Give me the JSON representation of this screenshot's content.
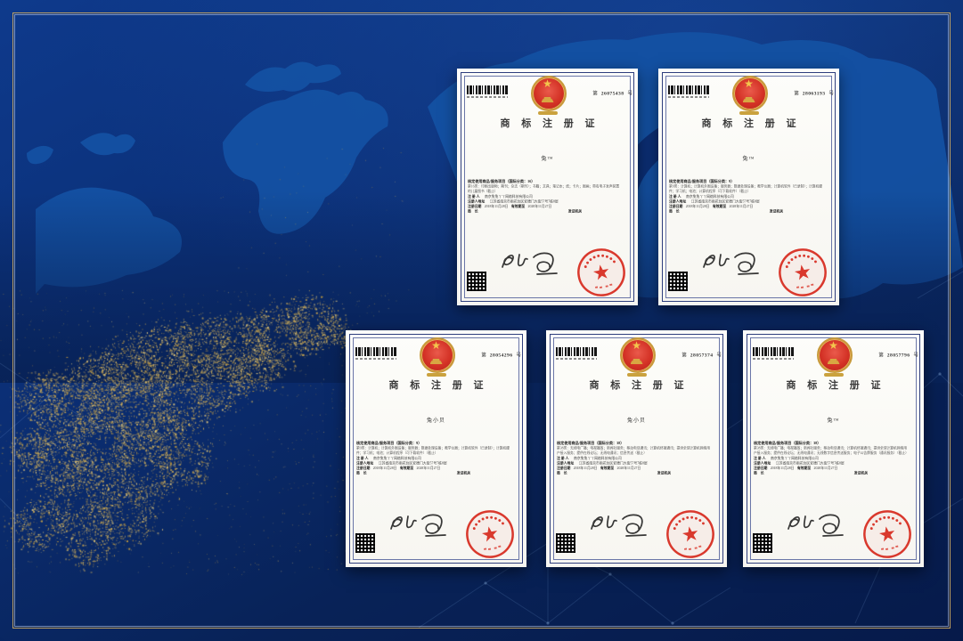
{
  "theme": {
    "navy_background": "#0b2f76",
    "map_blue": "#1452a4",
    "gold_dust": "#c9a44f",
    "certificate_border_blue": "#2e3e7d",
    "seal_red": "#d7291d",
    "emblem_red": "#d33125",
    "emblem_gold": "#d8a742"
  },
  "certificates": [
    {
      "number_prefix": "第",
      "number": "26075438",
      "number_suffix": "号",
      "title": "商 标 注 册 证",
      "trademark": "兔™",
      "class_line": "核定使用商品/服务项目（国际分类：16）",
      "goods": "第16类：印刷出版物；期刊；杂志（期刊）；书籍；文具；笔记本；纸；卡片；图画；带有电子发声装置的儿童图书（截止）",
      "registrant_label": "注 册 人",
      "registrant": "南京兔兔丫丫网络科技有限公司",
      "address_label": "注册人地址",
      "address": "江苏省南京市雨花台区安德门大街57号7栋8层",
      "reg_date_label": "注册日期",
      "reg_date": "2018年11月28日",
      "valid_label": "有效期至",
      "valid_date": "2028年11月27日",
      "director_label": "局　长",
      "issuer_label": "发证机关",
      "signature_name": "申长雨",
      "seal_text": "国家知识产权局"
    },
    {
      "number_prefix": "第",
      "number": "28063193",
      "number_suffix": "号",
      "title": "商 标 注 册 证",
      "trademark": "兔™",
      "class_line": "核定使用商品/服务项目（国际分类：9）",
      "goods": "第9类：计算机；计算机外围设备；服务器；数据处理设备；教学仪器；计算机软件（已录制）；计算机硬件；学习机；电池；计算机程序（可下载软件）（截止）",
      "registrant_label": "注 册 人",
      "registrant": "南京兔兔丫丫网络科技有限公司",
      "address_label": "注册人地址",
      "address": "江苏省南京市雨花台区安德门大街57号7栋8层",
      "reg_date_label": "注册日期",
      "reg_date": "2018年11月28日",
      "valid_label": "有效期至",
      "valid_date": "2028年11月27日",
      "director_label": "局　长",
      "issuer_label": "发证机关",
      "signature_name": "申长雨",
      "seal_text": "国家知识产权局"
    },
    {
      "number_prefix": "第",
      "number": "28054296",
      "number_suffix": "号",
      "title": "商 标 注 册 证",
      "trademark": "兔小贝",
      "class_line": "核定使用商品/服务项目（国际分类：9）",
      "goods": "第9类：计算机；计算机外围设备；服务器；数据处理设备；教学仪器；计算机软件（已录制）；计算机硬件；学习机；电池；计算机程序（可下载软件）（截止）",
      "registrant_label": "注 册 人",
      "registrant": "南京兔兔丫丫网络科技有限公司",
      "address_label": "注册人地址",
      "address": "江苏省南京市雨花台区安德门大街57号7栋8层",
      "reg_date_label": "注册日期",
      "reg_date": "2018年11月28日",
      "valid_label": "有效期至",
      "valid_date": "2028年11月27日",
      "director_label": "局　长",
      "issuer_label": "发证机关",
      "signature_name": "申长雨",
      "seal_text": "国家知识产权局"
    },
    {
      "number_prefix": "第",
      "number": "28057374",
      "number_suffix": "号",
      "title": "商 标 注 册 证",
      "trademark": "兔小贝",
      "class_line": "核定使用商品/服务项目（国际分类：38）",
      "goods": "第38类：无线电广播；电视播放；新闻社服务；移动电话通讯；计算机终端通讯；提供全球计算机网络用户接入服务；提供在线论坛；无线电通讯；信息传送（截止）",
      "registrant_label": "注 册 人",
      "registrant": "南京兔兔丫丫网络科技有限公司",
      "address_label": "注册人地址",
      "address": "江苏省南京市雨花台区安德门大街57号7栋8层",
      "reg_date_label": "注册日期",
      "reg_date": "2018年11月28日",
      "valid_label": "有效期至",
      "valid_date": "2028年11月27日",
      "director_label": "局　长",
      "issuer_label": "发证机关",
      "signature_name": "申长雨",
      "seal_text": "国家知识产权局"
    },
    {
      "number_prefix": "第",
      "number": "28057796",
      "number_suffix": "号",
      "title": "商 标 注 册 证",
      "trademark": "兔™",
      "class_line": "核定使用商品/服务项目（国际分类：38）",
      "goods": "第38类：无线电广播；电视播放；新闻社服务；移动电话通讯；计算机终端通讯；提供全球计算机网络用户接入服务；提供在线论坛；无线电通讯；无线数字信息传送服务；电子公告牌服务（通讯服务）（截止）",
      "registrant_label": "注 册 人",
      "registrant": "南京兔兔丫丫网络科技有限公司",
      "address_label": "注册人地址",
      "address": "江苏省南京市雨花台区安德门大街57号7栋8层",
      "reg_date_label": "注册日期",
      "reg_date": "2018年11月28日",
      "valid_label": "有效期至",
      "valid_date": "2028年11月27日",
      "director_label": "局　长",
      "issuer_label": "发证机关",
      "signature_name": "申长雨",
      "seal_text": "国家知识产权局"
    }
  ]
}
